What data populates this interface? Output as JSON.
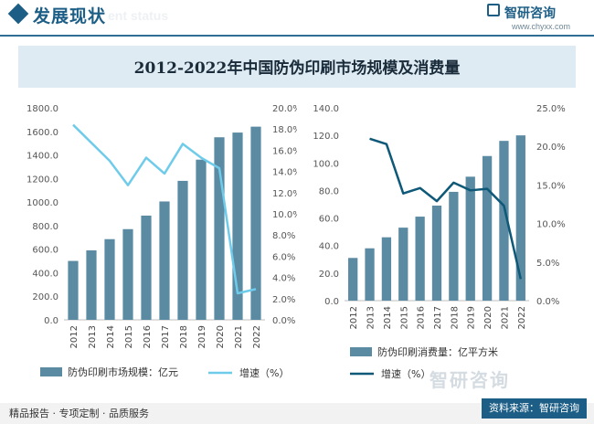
{
  "header": {
    "section_title": "发展现状",
    "section_ghost": "ent status",
    "brand_name": "智研咨询",
    "brand_url": "www.chyxx.com"
  },
  "title": "2012-2022年中国防伪印刷市场规模及消费量",
  "footer": {
    "left_text": "精品报告 · 专项定制 · 品质服务",
    "source": "资料来源：智研咨询",
    "watermark": "智研咨询"
  },
  "colors": {
    "bar": "#5b8aa3",
    "left_line": "#6fcbea",
    "right_line": "#0e5878",
    "brand": "#1c5e86"
  },
  "chart_data": [
    {
      "type": "bar",
      "categories": [
        "2012",
        "2013",
        "2014",
        "2015",
        "2016",
        "2017",
        "2018",
        "2019",
        "2020",
        "2021",
        "2022"
      ],
      "series": [
        {
          "name": "防伪印刷市场规模：亿元",
          "type": "bar",
          "axis": "left",
          "values": [
            500,
            590,
            685,
            770,
            885,
            1005,
            1180,
            1360,
            1550,
            1590,
            1640
          ]
        },
        {
          "name": "增速（%）",
          "type": "line",
          "axis": "right",
          "values": [
            18.4,
            null,
            15.0,
            12.7,
            15.3,
            13.8,
            16.6,
            15.3,
            14.3,
            2.5,
            2.9
          ]
        }
      ],
      "left_axis": {
        "min": 0,
        "max": 1800,
        "step": 200,
        "ticks": [
          "0.0",
          "200.0",
          "400.0",
          "600.0",
          "800.0",
          "1000.0",
          "1200.0",
          "1400.0",
          "1600.0",
          "1800.0"
        ]
      },
      "right_axis": {
        "min": 0,
        "max": 20,
        "step": 2,
        "ticks": [
          "0.0%",
          "2.0%",
          "4.0%",
          "6.0%",
          "8.0%",
          "10.0%",
          "12.0%",
          "14.0%",
          "16.0%",
          "18.0%",
          "20.0%"
        ]
      },
      "legend": [
        "防伪印刷市场规模：亿元",
        "增速（%）"
      ]
    },
    {
      "type": "bar",
      "categories": [
        "2012",
        "2013",
        "2014",
        "2015",
        "2016",
        "2017",
        "2018",
        "2019",
        "2020",
        "2021",
        "2022"
      ],
      "series": [
        {
          "name": "防伪印刷消费量：亿平方米",
          "type": "bar",
          "axis": "left",
          "values": [
            31,
            38,
            46,
            53,
            61,
            69,
            79,
            90,
            105,
            116,
            120
          ]
        },
        {
          "name": "增速（%）",
          "type": "line",
          "axis": "right",
          "values": [
            null,
            21.0,
            20.3,
            13.9,
            14.6,
            12.9,
            15.3,
            14.3,
            14.5,
            12.3,
            2.8
          ]
        }
      ],
      "left_axis": {
        "min": 0,
        "max": 140,
        "step": 20,
        "ticks": [
          "0.0",
          "20.0",
          "40.0",
          "60.0",
          "80.0",
          "100.0",
          "120.0",
          "140.0"
        ]
      },
      "right_axis": {
        "min": 0,
        "max": 25,
        "step": 5,
        "ticks": [
          "0.0%",
          "5.0%",
          "10.0%",
          "15.0%",
          "20.0%",
          "25.0%"
        ]
      },
      "legend": [
        "防伪印刷消费量：亿平方米",
        "增速（%）"
      ]
    }
  ]
}
